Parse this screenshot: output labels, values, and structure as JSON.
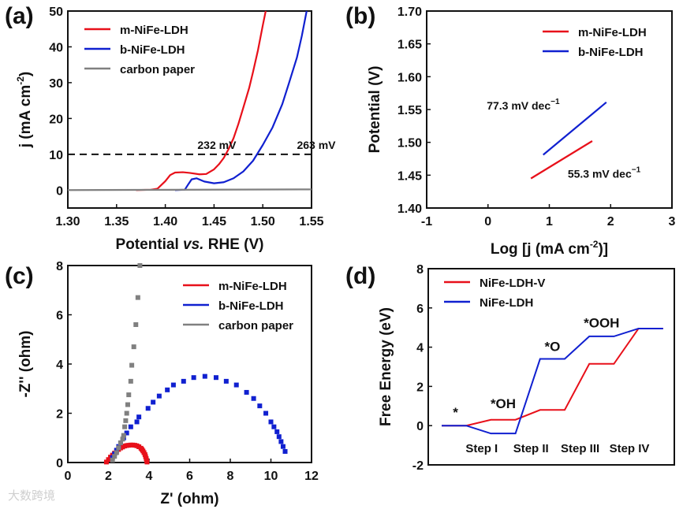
{
  "watermark": "大数跨境",
  "chart_data": [
    {
      "panel_label": "(a)",
      "type": "line",
      "xlabel_parts": [
        "Potential ",
        "vs.",
        " RHE (V)"
      ],
      "ylabel": "j (mA cm",
      "ylabel_sup": "-2",
      "ylabel_end": ")",
      "xlim": [
        1.3,
        1.55
      ],
      "ylim": [
        -5,
        50
      ],
      "xticks": [
        1.3,
        1.35,
        1.4,
        1.45,
        1.5,
        1.55
      ],
      "xtick_labels": [
        "1.30",
        "1.35",
        "1.40",
        "1.45",
        "1.50",
        "1.55"
      ],
      "yticks": [
        0,
        10,
        20,
        30,
        40,
        50
      ],
      "ytick_labels": [
        "0",
        "10",
        "20",
        "30",
        "40",
        "50"
      ],
      "legend_position": "top-left",
      "series": [
        {
          "name": "m-NiFe-LDH",
          "color": "#e8101a",
          "x": [
            1.37,
            1.385,
            1.392,
            1.4,
            1.405,
            1.41,
            1.418,
            1.425,
            1.435,
            1.442,
            1.45,
            1.455,
            1.46,
            1.465,
            1.47,
            1.475,
            1.48,
            1.486,
            1.49,
            1.495,
            1.5,
            1.503
          ],
          "y": [
            0,
            0.1,
            0.4,
            2.5,
            4.2,
            4.9,
            5.0,
            4.8,
            4.4,
            4.5,
            5.8,
            7.2,
            9.0,
            11.5,
            14.5,
            18.5,
            23,
            28.5,
            33,
            39,
            46,
            50
          ]
        },
        {
          "name": "b-NiFe-LDH",
          "color": "#1020d0",
          "x": [
            1.41,
            1.42,
            1.424,
            1.427,
            1.432,
            1.44,
            1.45,
            1.46,
            1.47,
            1.48,
            1.49,
            1.5,
            1.51,
            1.52,
            1.527,
            1.535,
            1.54,
            1.545
          ],
          "y": [
            0,
            0.1,
            1.8,
            3.0,
            3.3,
            2.4,
            1.9,
            2.2,
            3.3,
            5.2,
            8.2,
            12.6,
            17.5,
            24,
            30,
            37,
            43,
            50
          ]
        },
        {
          "name": "carbon paper",
          "color": "#808080",
          "x": [
            1.3,
            1.55
          ],
          "y": [
            0,
            0.2
          ]
        }
      ],
      "reference_line": {
        "y": 10,
        "style": "dashed"
      },
      "annotations": [
        {
          "text": "232 mV",
          "x": 1.433,
          "y": 11.5
        },
        {
          "text": "263 mV",
          "x": 1.535,
          "y": 11.5
        }
      ]
    },
    {
      "panel_label": "(b)",
      "type": "line",
      "xlabel": "Log [j (mA cm",
      "xlabel_sup": "-2",
      "xlabel_end": ")]",
      "ylabel": "Potential (V)",
      "xlim": [
        -1,
        3
      ],
      "ylim": [
        1.4,
        1.7
      ],
      "xticks": [
        -1,
        0,
        1,
        2,
        3
      ],
      "xtick_labels": [
        "-1",
        "0",
        "1",
        "2",
        "3"
      ],
      "yticks": [
        1.4,
        1.45,
        1.5,
        1.55,
        1.6,
        1.65,
        1.7
      ],
      "ytick_labels": [
        "1.40",
        "1.45",
        "1.50",
        "1.55",
        "1.60",
        "1.65",
        "1.70"
      ],
      "legend_position": "top-right",
      "series": [
        {
          "name": "m-NiFe-LDH",
          "color": "#e8101a",
          "x": [
            0.7,
            1.7
          ],
          "y": [
            1.445,
            1.502
          ]
        },
        {
          "name": "b-NiFe-LDH",
          "color": "#1020d0",
          "x": [
            0.9,
            1.93
          ],
          "y": [
            1.481,
            1.561
          ]
        }
      ],
      "annotations": [
        {
          "text": "77.3 mV dec",
          "sup": "−1",
          "x": -0.02,
          "y": 1.55
        },
        {
          "text": "55.3 mV dec",
          "sup": "−1",
          "x": 1.3,
          "y": 1.446
        }
      ]
    },
    {
      "panel_label": "(c)",
      "type": "scatter",
      "xlabel": "Z' (ohm)",
      "ylabel": "-Z'' (ohm)",
      "xlim": [
        0,
        12
      ],
      "ylim": [
        0,
        8
      ],
      "xticks": [
        0,
        2,
        4,
        6,
        8,
        10,
        12
      ],
      "xtick_labels": [
        "0",
        "2",
        "4",
        "6",
        "8",
        "10",
        "12"
      ],
      "yticks": [
        0,
        2,
        4,
        6,
        8
      ],
      "ytick_labels": [
        "0",
        "2",
        "4",
        "6",
        "8"
      ],
      "legend_position": "top-right",
      "series": [
        {
          "name": "m-NiFe-LDH",
          "color": "#e8101a",
          "x": [
            1.9,
            2.0,
            2.1,
            2.2,
            2.3,
            2.4,
            2.5,
            2.6,
            2.7,
            2.8,
            2.9,
            3.0,
            3.1,
            3.2,
            3.3,
            3.4,
            3.5,
            3.6,
            3.65,
            3.7,
            3.75,
            3.8,
            3.83,
            3.86,
            3.88,
            3.9
          ],
          "y": [
            0.02,
            0.12,
            0.22,
            0.3,
            0.38,
            0.46,
            0.53,
            0.59,
            0.63,
            0.67,
            0.69,
            0.7,
            0.71,
            0.71,
            0.7,
            0.68,
            0.64,
            0.58,
            0.53,
            0.47,
            0.4,
            0.32,
            0.24,
            0.16,
            0.08,
            0.02
          ]
        },
        {
          "name": "b-NiFe-LDH",
          "color": "#1020d0",
          "x": [
            2.2,
            2.3,
            2.4,
            2.5,
            2.6,
            2.75,
            2.9,
            3.1,
            3.4,
            3.5,
            3.95,
            4.2,
            4.5,
            4.9,
            5.2,
            5.7,
            6.2,
            6.75,
            7.3,
            7.8,
            8.3,
            8.8,
            9.15,
            9.45,
            9.75,
            10.0,
            10.15,
            10.3,
            10.4,
            10.5,
            10.6,
            10.7
          ],
          "y": [
            0.2,
            0.35,
            0.5,
            0.65,
            0.8,
            1.0,
            1.2,
            1.45,
            1.65,
            1.85,
            2.2,
            2.45,
            2.7,
            2.95,
            3.15,
            3.3,
            3.45,
            3.5,
            3.45,
            3.3,
            3.15,
            2.85,
            2.6,
            2.3,
            2.0,
            1.65,
            1.45,
            1.25,
            1.05,
            0.85,
            0.65,
            0.45
          ]
        },
        {
          "name": "carbon paper",
          "color": "#808080",
          "x": [
            2.2,
            2.3,
            2.4,
            2.5,
            2.6,
            2.7,
            2.75,
            2.8,
            2.85,
            2.9,
            2.95,
            3.0,
            3.1,
            3.15,
            3.25,
            3.35,
            3.45,
            3.55
          ],
          "y": [
            0.1,
            0.25,
            0.4,
            0.6,
            0.8,
            0.95,
            1.1,
            1.45,
            1.7,
            2.0,
            2.35,
            2.75,
            3.3,
            3.95,
            4.7,
            5.6,
            6.7,
            8.0
          ]
        }
      ]
    },
    {
      "panel_label": "(d)",
      "type": "line",
      "ylabel": "Free Energy (eV)",
      "ylim": [
        -2,
        8
      ],
      "yticks": [
        -2,
        0,
        2,
        4,
        6,
        8
      ],
      "ytick_labels": [
        "-2",
        "0",
        "2",
        "4",
        "6",
        "8"
      ],
      "categories": [
        "Step I",
        "Step II",
        "Step III",
        "Step IV"
      ],
      "legend_position": "top-left",
      "series": [
        {
          "name": "NiFe-LDH-V",
          "color": "#e8101a",
          "levels": [
            0,
            0.3,
            0.8,
            3.15,
            4.95
          ]
        },
        {
          "name": "NiFe-LDH",
          "color": "#1020d0",
          "levels": [
            0,
            -0.4,
            3.4,
            4.55,
            4.95
          ]
        }
      ],
      "annotations": [
        {
          "text": "*",
          "level_index": 0,
          "y": 0.45
        },
        {
          "text": "*OH",
          "level_index": 1,
          "y": 0.9
        },
        {
          "text": "*O",
          "level_index": 2,
          "y": 3.8
        },
        {
          "text": "*OOH",
          "level_index": 3,
          "y": 5.0
        }
      ]
    }
  ]
}
